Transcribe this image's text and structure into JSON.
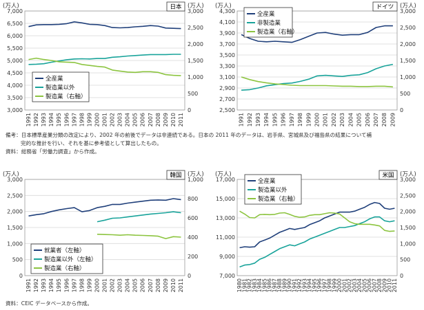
{
  "notes": {
    "top_line1": "備考：日本標準産業分類の改定により、2002 年の前後でデータは非連続である。日本の 2011 年のデータは、岩手県、宮城県及び福島県の結果について補",
    "top_line2": "完的な推計を行い、それを基に参考値として算出したもの。",
    "top_line3": "資料：総務省「労働力調査」から作成。",
    "bottom": "資料：CEIC データベースから作成。"
  },
  "chart_data": [
    {
      "type": "line",
      "title": "日本",
      "left_unit": "(万人)",
      "right_unit": "(万人)",
      "x": [
        1991,
        1992,
        1993,
        1994,
        1995,
        1996,
        1997,
        1998,
        1999,
        2000,
        2001,
        2002,
        2003,
        2004,
        2005,
        2006,
        2007,
        2008,
        2009,
        2010,
        2011
      ],
      "x_ticks": [
        "1991",
        "1992",
        "1993",
        "1994",
        "1995",
        "1996",
        "1997",
        "1998",
        "1999",
        "2000",
        "2001",
        "2002",
        "2003",
        "2004",
        "2005",
        "2006",
        "2007",
        "2008",
        "2009",
        "2010",
        "2011"
      ],
      "ylim_left": [
        3000,
        7000
      ],
      "yticks_left": [
        "3,000",
        "3,500",
        "4,000",
        "4,500",
        "5,000",
        "5,500",
        "6,000",
        "6,500",
        "7,000"
      ],
      "ylim_right": [
        0,
        3000
      ],
      "yticks_right": [
        "0",
        "500",
        "1,000",
        "1,500",
        "2,000",
        "2,500",
        "3,000"
      ],
      "legend_position": "bottom-left",
      "grid": true,
      "series": [
        {
          "name": "全産業",
          "axis": "left",
          "color": "#1f3f7a",
          "values": [
            6370,
            6440,
            6450,
            6450,
            6460,
            6490,
            6560,
            6520,
            6460,
            6450,
            6410,
            6330,
            6320,
            6330,
            6360,
            6380,
            6410,
            6390,
            6310,
            6300,
            6290
          ]
        },
        {
          "name": "製造業以外",
          "axis": "left",
          "color": "#18a39a",
          "values": [
            4840,
            4850,
            4870,
            4930,
            4980,
            5030,
            5060,
            5070,
            5060,
            5080,
            5080,
            5130,
            5150,
            5180,
            5200,
            5220,
            5240,
            5240,
            5240,
            5250,
            5250
          ]
        },
        {
          "name": "製造業（右軸）",
          "axis": "right",
          "color": "#8cc43f",
          "values": [
            1530,
            1570,
            1530,
            1500,
            1460,
            1450,
            1440,
            1380,
            1350,
            1320,
            1300,
            1210,
            1180,
            1150,
            1140,
            1160,
            1160,
            1140,
            1070,
            1050,
            1040
          ]
        }
      ]
    },
    {
      "type": "line",
      "title": "ドイツ",
      "left_unit": "(万人)",
      "right_unit": "(万人)",
      "x": [
        1991,
        1992,
        1993,
        1994,
        1995,
        1996,
        1997,
        1998,
        1999,
        2000,
        2001,
        2002,
        2003,
        2004,
        2005,
        2006,
        2007,
        2008,
        2009
      ],
      "x_ticks": [
        "1991",
        "1992",
        "1993",
        "1994",
        "1995",
        "1996",
        "1997",
        "1998",
        "1999",
        "2000",
        "2001",
        "2002",
        "2003",
        "2004",
        "2005",
        "2006",
        "2007",
        "2008",
        "2009"
      ],
      "ylim_left": [
        2500,
        4300
      ],
      "yticks_left": [
        "2,500",
        "2,700",
        "2,900",
        "3,100",
        "3,300",
        "3,500",
        "3,700",
        "3,900",
        "4,100",
        "4,300"
      ],
      "ylim_right": [
        0,
        3000
      ],
      "yticks_right": [
        "0",
        "500",
        "1,000",
        "1,500",
        "2,000",
        "2,500",
        "3,000"
      ],
      "legend_position": "top-left",
      "grid": true,
      "series": [
        {
          "name": "全産業",
          "axis": "left",
          "color": "#1f3f7a",
          "values": [
            3870,
            3800,
            3750,
            3740,
            3750,
            3740,
            3730,
            3780,
            3840,
            3900,
            3910,
            3880,
            3860,
            3870,
            3870,
            3910,
            4000,
            4030,
            4030
          ]
        },
        {
          "name": "非製造業",
          "axis": "left",
          "color": "#18a39a",
          "values": [
            2860,
            2870,
            2900,
            2940,
            2960,
            2980,
            2990,
            3020,
            3060,
            3120,
            3130,
            3120,
            3110,
            3130,
            3140,
            3180,
            3250,
            3300,
            3330
          ]
        },
        {
          "name": "製造業（右軸）",
          "axis": "right",
          "color": "#8cc43f",
          "values": [
            1000,
            920,
            860,
            820,
            790,
            770,
            750,
            740,
            740,
            740,
            740,
            730,
            720,
            720,
            710,
            710,
            720,
            720,
            700
          ]
        }
      ]
    },
    {
      "type": "line",
      "title": "韓国",
      "left_unit": "(万人)",
      "right_unit": "(万人)",
      "x": [
        1991,
        1992,
        1993,
        1994,
        1995,
        1996,
        1997,
        1998,
        1999,
        2000,
        2001,
        2002,
        2003,
        2004,
        2005,
        2006,
        2007,
        2008,
        2009,
        2010,
        2011
      ],
      "x_ticks": [
        "1991",
        "1992",
        "1993",
        "1994",
        "1995",
        "1996",
        "1997",
        "1998",
        "1999",
        "2000",
        "2001",
        "2002",
        "2003",
        "2004",
        "2005",
        "2006",
        "2007",
        "2008",
        "2009",
        "2010",
        "2011"
      ],
      "ylim_left": [
        0,
        3000
      ],
      "yticks_left": [
        "0",
        "500",
        "1,000",
        "1,500",
        "2,000",
        "2,500",
        "3,000"
      ],
      "ylim_right": [
        0,
        1000
      ],
      "yticks_right": [
        "0",
        "200",
        "400",
        "600",
        "800",
        "1,000"
      ],
      "legend_position": "bottom-left",
      "grid": true,
      "series": [
        {
          "name": "就業者（左軸）",
          "axis": "left",
          "color": "#1f3f7a",
          "values": [
            1860,
            1900,
            1930,
            2000,
            2050,
            2090,
            2120,
            1990,
            2030,
            2120,
            2160,
            2220,
            2220,
            2260,
            2290,
            2320,
            2350,
            2360,
            2350,
            2400,
            2370
          ]
        },
        {
          "name": "製造業以外（左軸）",
          "axis": "left",
          "color": "#18a39a",
          "values": [
            null,
            null,
            null,
            null,
            null,
            null,
            null,
            null,
            null,
            1680,
            1730,
            1790,
            1800,
            1830,
            1860,
            1890,
            1920,
            1940,
            1960,
            1990,
            1960
          ]
        },
        {
          "name": "製造業（右軸）",
          "axis": "right",
          "color": "#8cc43f",
          "values": [
            null,
            null,
            null,
            null,
            null,
            null,
            null,
            null,
            null,
            430,
            427,
            425,
            420,
            425,
            420,
            418,
            415,
            410,
            385,
            405,
            400
          ]
        }
      ]
    },
    {
      "type": "line",
      "title": "米国",
      "left_unit": "(万人)",
      "right_unit": "(万人)",
      "x": [
        1980,
        1981,
        1982,
        1983,
        1984,
        1985,
        1986,
        1987,
        1988,
        1989,
        1990,
        1991,
        1992,
        1993,
        1994,
        1995,
        1996,
        1997,
        1998,
        1999,
        2000,
        2001,
        2002,
        2003,
        2004,
        2005,
        2006,
        2007,
        2008,
        2009,
        2010,
        2011
      ],
      "x_ticks": [
        "1980",
        "1981",
        "1982",
        "1983",
        "1984",
        "1985",
        "1986",
        "1987",
        "1988",
        "1989",
        "1990",
        "1991",
        "1992",
        "1993",
        "1994",
        "1995",
        "1996",
        "1997",
        "1998",
        "1999",
        "2000",
        "2001",
        "2002",
        "2003",
        "2004",
        "2005",
        "2006",
        "2007",
        "2008",
        "2009",
        "2010",
        "2011"
      ],
      "ylim_left": [
        7000,
        17000
      ],
      "yticks_left": [
        "7,000",
        "9,000",
        "11,000",
        "13,000",
        "15,000",
        "17,000"
      ],
      "ylim_right": [
        0,
        3000
      ],
      "yticks_right": [
        "0",
        "500",
        "1,000",
        "1,500",
        "2,000",
        "2,500",
        "3,000"
      ],
      "legend_position": "top-left",
      "grid": true,
      "series": [
        {
          "name": "全産業",
          "axis": "left",
          "color": "#1f3f7a",
          "values": [
            9900,
            10000,
            9960,
            10000,
            10500,
            10700,
            10900,
            11200,
            11500,
            11700,
            11900,
            11800,
            11900,
            12000,
            12300,
            12500,
            12700,
            13000,
            13200,
            13400,
            13600,
            13600,
            13600,
            13700,
            13900,
            14100,
            14400,
            14600,
            14500,
            14000,
            13900,
            14000
          ]
        },
        {
          "name": "製造業以外",
          "axis": "left",
          "color": "#18a39a",
          "values": [
            7900,
            8100,
            8150,
            8300,
            8700,
            8900,
            9200,
            9500,
            9800,
            10000,
            10200,
            10100,
            10300,
            10500,
            10800,
            11000,
            11200,
            11400,
            11600,
            11800,
            12000,
            12000,
            12100,
            12200,
            12400,
            12600,
            12900,
            13100,
            13100,
            12700,
            12600,
            12700
          ]
        },
        {
          "name": "製造業（右軸）",
          "axis": "right",
          "color": "#8cc43f",
          "values": [
            2010,
            1920,
            1810,
            1800,
            1900,
            1910,
            1900,
            1910,
            1950,
            1960,
            1910,
            1850,
            1820,
            1830,
            1880,
            1900,
            1900,
            1930,
            1960,
            1950,
            1920,
            1800,
            1680,
            1620,
            1600,
            1600,
            1600,
            1580,
            1550,
            1410,
            1380,
            1390
          ]
        }
      ]
    }
  ]
}
